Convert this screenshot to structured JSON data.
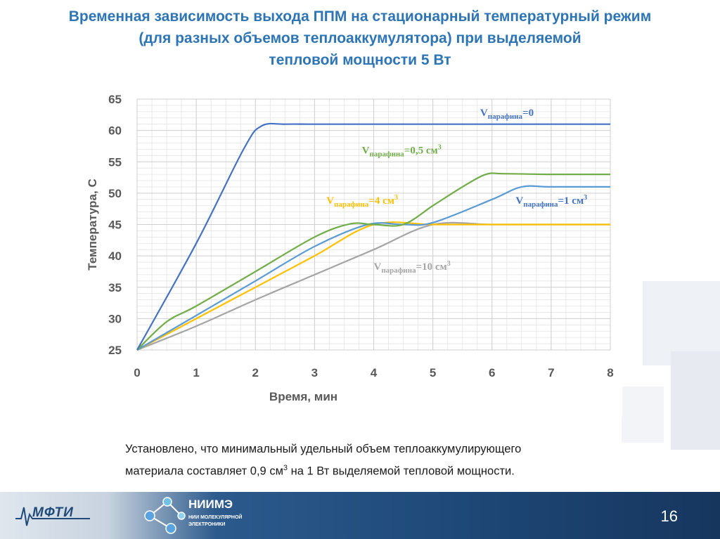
{
  "title": {
    "line1": "Временная зависимость выхода ППМ на стационарный температурный режим",
    "line2": "(для разных объемов теплоаккумулятора) при выделяемой",
    "line3": "тепловой мощности 5 Вт"
  },
  "chart_data": {
    "type": "line",
    "xlabel": "Время, мин",
    "ylabel": "Температура, С",
    "xlim": [
      0,
      8
    ],
    "ylim": [
      25,
      65
    ],
    "xticks": [
      "0",
      "1",
      "2",
      "3",
      "4",
      "5",
      "6",
      "7",
      "8"
    ],
    "yticks": [
      "25",
      "30",
      "35",
      "40",
      "45",
      "50",
      "55",
      "60",
      "65"
    ],
    "grid": true,
    "series": [
      {
        "name": "Vпарафина=0",
        "color": "#4472c4",
        "points": [
          [
            0,
            25
          ],
          [
            1,
            42
          ],
          [
            1.8,
            57
          ],
          [
            2.1,
            60.7
          ],
          [
            2.5,
            61
          ],
          [
            3,
            61
          ],
          [
            4,
            61
          ],
          [
            5,
            61
          ],
          [
            6,
            61
          ],
          [
            7,
            61
          ],
          [
            8,
            61
          ]
        ]
      },
      {
        "name": "Vпарафина=0,5 см3",
        "color": "#70ad47",
        "points": [
          [
            0,
            25
          ],
          [
            0.5,
            29.5
          ],
          [
            1,
            32
          ],
          [
            2,
            37.5
          ],
          [
            3,
            43
          ],
          [
            3.6,
            45.1
          ],
          [
            4,
            45
          ],
          [
            4.5,
            45
          ],
          [
            5,
            48
          ],
          [
            5.5,
            51
          ],
          [
            5.9,
            53
          ],
          [
            6.2,
            53.1
          ],
          [
            7,
            53
          ],
          [
            8,
            53
          ]
        ]
      },
      {
        "name": "Vпарафина=1 см3",
        "color": "#5b9bd5",
        "points": [
          [
            0,
            25
          ],
          [
            1,
            30.5
          ],
          [
            2,
            36
          ],
          [
            3,
            41.5
          ],
          [
            3.9,
            45
          ],
          [
            4.5,
            45
          ],
          [
            5,
            45.3
          ],
          [
            6,
            49
          ],
          [
            6.5,
            51
          ],
          [
            7,
            51
          ],
          [
            8,
            51
          ]
        ]
      },
      {
        "name": "Vпарафина=4 см3",
        "color": "#ffc000",
        "points": [
          [
            0,
            25
          ],
          [
            1,
            30
          ],
          [
            2,
            35
          ],
          [
            3,
            40
          ],
          [
            4,
            45
          ],
          [
            5,
            45
          ],
          [
            6,
            45
          ],
          [
            7,
            45
          ],
          [
            8,
            45
          ]
        ]
      },
      {
        "name": "Vпарафина=10 см3",
        "color": "#a5a5a5",
        "points": [
          [
            0,
            25
          ],
          [
            1,
            28.8
          ],
          [
            2,
            33
          ],
          [
            3,
            37
          ],
          [
            4,
            41
          ],
          [
            5,
            45
          ],
          [
            6,
            45
          ],
          [
            7,
            45
          ],
          [
            8,
            45
          ]
        ]
      }
    ],
    "annotations": [
      {
        "main": "V",
        "sub": "парафина",
        "rest": "=0",
        "sup": "",
        "color": "#4472c4",
        "x": 5.8,
        "y": 62.3
      },
      {
        "main": "V",
        "sub": "парафина",
        "rest": "=0,5 см",
        "sup": "3",
        "color": "#70ad47",
        "x": 3.8,
        "y": 56.3
      },
      {
        "main": "V",
        "sub": "парафина",
        "rest": "=1 см",
        "sup": "3",
        "color": "#4472c4",
        "x": 6.4,
        "y": 48.3
      },
      {
        "main": "V",
        "sub": "парафина",
        "rest": "=4 см",
        "sup": "3",
        "color": "#ffc000",
        "x": 3.2,
        "y": 48.3
      },
      {
        "main": "V",
        "sub": "парафина",
        "rest": "=10 см",
        "sup": "3",
        "color": "#a5a5a5",
        "x": 4.0,
        "y": 37.8
      }
    ]
  },
  "conclusion": {
    "line1": "Установлено, что минимальный удельный объем теплоаккумулирующего",
    "line2_a": "материала составляет 0,9 см",
    "line2_sup": "3",
    "line2_b": " на 1 Вт выделяемой тепловой мощности."
  },
  "footer": {
    "mfti": "МФТИ",
    "niime": "НИИМЭ",
    "niime_sub": "НИИ МОЛЕКУЛЯРНОЙ ЭЛЕКТРОНИКИ",
    "page_number": "16"
  }
}
